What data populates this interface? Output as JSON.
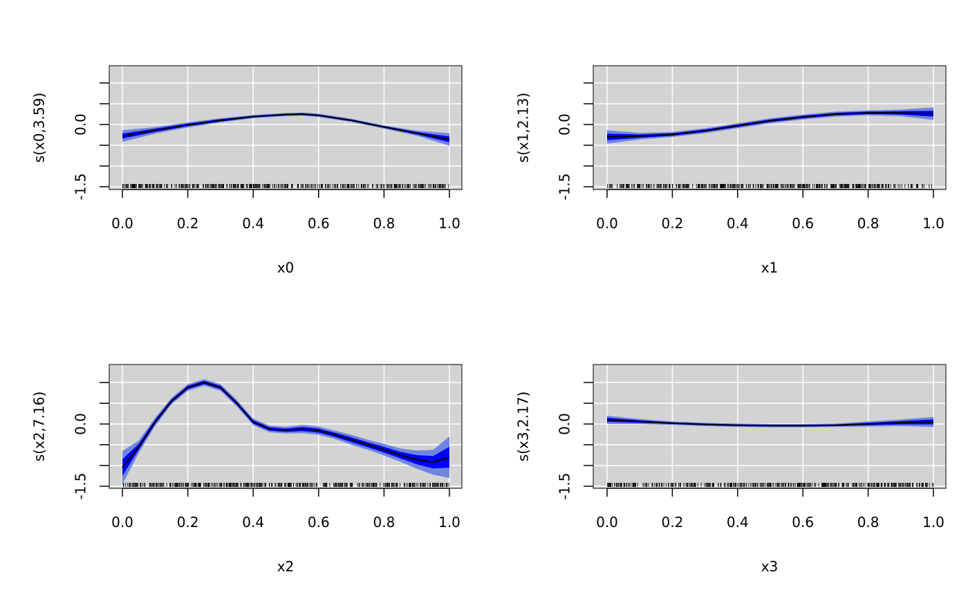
{
  "chart_data": [
    {
      "type": "line",
      "xlabel": "x0",
      "ylabel": "s(x0,3.59)",
      "xlim": [
        0,
        1
      ],
      "ylim": [
        -1.5,
        1.0
      ],
      "xticks": [
        "0.0",
        "0.2",
        "0.4",
        "0.6",
        "0.8",
        "1.0"
      ],
      "yticks": [
        "-1.5",
        "0.0"
      ],
      "grid": true,
      "series": [
        {
          "x": [
            0.0,
            0.1,
            0.2,
            0.3,
            0.4,
            0.5,
            0.55,
            0.6,
            0.7,
            0.8,
            0.9,
            1.0
          ],
          "y": [
            -0.28,
            -0.14,
            -0.01,
            0.1,
            0.19,
            0.24,
            0.25,
            0.22,
            0.1,
            -0.06,
            -0.21,
            -0.36
          ],
          "lower_inner": [
            -0.34,
            -0.18,
            -0.04,
            0.07,
            0.17,
            0.22,
            0.23,
            0.2,
            0.08,
            -0.08,
            -0.24,
            -0.43
          ],
          "upper_inner": [
            -0.22,
            -0.1,
            0.02,
            0.13,
            0.21,
            0.26,
            0.27,
            0.24,
            0.12,
            -0.04,
            -0.18,
            -0.29
          ],
          "lower_outer": [
            -0.42,
            -0.22,
            -0.07,
            0.05,
            0.15,
            0.2,
            0.21,
            0.18,
            0.06,
            -0.1,
            -0.27,
            -0.51
          ],
          "upper_outer": [
            -0.14,
            -0.06,
            0.05,
            0.15,
            0.23,
            0.28,
            0.29,
            0.26,
            0.14,
            -0.02,
            -0.15,
            -0.21
          ]
        }
      ]
    },
    {
      "type": "line",
      "xlabel": "x1",
      "ylabel": "s(x1,2.13)",
      "xlim": [
        0,
        1
      ],
      "ylim": [
        -1.5,
        1.0
      ],
      "xticks": [
        "0.0",
        "0.2",
        "0.4",
        "0.6",
        "0.8",
        "1.0"
      ],
      "yticks": [
        "-1.5",
        "0.0"
      ],
      "grid": true,
      "series": [
        {
          "x": [
            0.0,
            0.1,
            0.2,
            0.3,
            0.4,
            0.5,
            0.6,
            0.7,
            0.8,
            0.9,
            1.0
          ],
          "y": [
            -0.3,
            -0.28,
            -0.24,
            -0.15,
            -0.03,
            0.09,
            0.18,
            0.25,
            0.28,
            0.28,
            0.26
          ],
          "lower_inner": [
            -0.38,
            -0.32,
            -0.27,
            -0.18,
            -0.06,
            0.06,
            0.15,
            0.22,
            0.25,
            0.24,
            0.19
          ],
          "upper_inner": [
            -0.22,
            -0.24,
            -0.21,
            -0.12,
            0.0,
            0.12,
            0.21,
            0.28,
            0.31,
            0.32,
            0.33
          ],
          "lower_outer": [
            -0.46,
            -0.36,
            -0.3,
            -0.21,
            -0.09,
            0.03,
            0.12,
            0.19,
            0.22,
            0.2,
            0.11
          ],
          "upper_outer": [
            -0.14,
            -0.2,
            -0.18,
            -0.09,
            0.03,
            0.15,
            0.24,
            0.31,
            0.34,
            0.36,
            0.41
          ]
        }
      ]
    },
    {
      "type": "line",
      "xlabel": "x2",
      "ylabel": "s(x2,7.16)",
      "xlim": [
        0,
        1
      ],
      "ylim": [
        -1.5,
        1.0
      ],
      "xticks": [
        "0.0",
        "0.2",
        "0.4",
        "0.6",
        "0.8",
        "1.0"
      ],
      "yticks": [
        "-1.5",
        "0.0"
      ],
      "grid": true,
      "series": [
        {
          "x": [
            0.0,
            0.05,
            0.1,
            0.15,
            0.2,
            0.25,
            0.3,
            0.35,
            0.4,
            0.45,
            0.5,
            0.55,
            0.6,
            0.65,
            0.7,
            0.75,
            0.8,
            0.85,
            0.9,
            0.95,
            1.0
          ],
          "y": [
            -1.05,
            -0.55,
            0.05,
            0.55,
            0.88,
            1.0,
            0.88,
            0.5,
            0.05,
            -0.12,
            -0.15,
            -0.12,
            -0.16,
            -0.26,
            -0.38,
            -0.5,
            -0.62,
            -0.75,
            -0.86,
            -0.92,
            -0.8
          ],
          "lower_inner": [
            -1.25,
            -0.62,
            0.0,
            0.51,
            0.84,
            0.96,
            0.84,
            0.46,
            0.01,
            -0.16,
            -0.19,
            -0.17,
            -0.21,
            -0.31,
            -0.44,
            -0.56,
            -0.69,
            -0.83,
            -0.97,
            -1.07,
            -1.05
          ],
          "upper_inner": [
            -0.85,
            -0.48,
            0.1,
            0.59,
            0.92,
            1.04,
            0.92,
            0.54,
            0.09,
            -0.08,
            -0.11,
            -0.07,
            -0.11,
            -0.21,
            -0.32,
            -0.44,
            -0.55,
            -0.67,
            -0.75,
            -0.77,
            -0.55
          ],
          "lower_outer": [
            -1.45,
            -0.7,
            -0.05,
            0.47,
            0.8,
            0.92,
            0.8,
            0.42,
            -0.03,
            -0.2,
            -0.23,
            -0.22,
            -0.26,
            -0.36,
            -0.5,
            -0.62,
            -0.76,
            -0.91,
            -1.08,
            -1.22,
            -1.3
          ],
          "upper_outer": [
            -0.65,
            -0.4,
            0.15,
            0.63,
            0.96,
            1.08,
            0.96,
            0.58,
            0.13,
            -0.04,
            -0.07,
            -0.02,
            -0.06,
            -0.16,
            -0.26,
            -0.38,
            -0.48,
            -0.59,
            -0.64,
            -0.62,
            -0.3
          ]
        }
      ]
    },
    {
      "type": "line",
      "xlabel": "x3",
      "ylabel": "s(x3,2.17)",
      "xlim": [
        0,
        1
      ],
      "ylim": [
        -1.5,
        1.0
      ],
      "xticks": [
        "0.0",
        "0.2",
        "0.4",
        "0.6",
        "0.8",
        "1.0"
      ],
      "yticks": [
        "-1.5",
        "0.0"
      ],
      "grid": true,
      "series": [
        {
          "x": [
            0.0,
            0.1,
            0.2,
            0.3,
            0.4,
            0.5,
            0.6,
            0.7,
            0.8,
            0.9,
            1.0
          ],
          "y": [
            0.1,
            0.06,
            0.02,
            -0.01,
            -0.03,
            -0.04,
            -0.04,
            -0.03,
            0.0,
            0.03,
            0.05
          ],
          "lower_inner": [
            0.05,
            0.03,
            0.0,
            -0.03,
            -0.05,
            -0.06,
            -0.06,
            -0.05,
            -0.03,
            -0.01,
            -0.01
          ],
          "upper_inner": [
            0.15,
            0.09,
            0.04,
            0.01,
            -0.01,
            -0.02,
            -0.02,
            -0.01,
            0.03,
            0.07,
            0.11
          ],
          "lower_outer": [
            0.0,
            0.0,
            -0.02,
            -0.05,
            -0.07,
            -0.08,
            -0.08,
            -0.07,
            -0.06,
            -0.05,
            -0.07
          ],
          "upper_outer": [
            0.2,
            0.12,
            0.06,
            0.03,
            0.01,
            0.0,
            0.0,
            0.01,
            0.06,
            0.11,
            0.17
          ]
        }
      ]
    }
  ],
  "colors": {
    "panel_background": "#d3d3d3",
    "grid": "#ffffff",
    "outer_band": "#6f86e0",
    "inner_band": "#0000ff",
    "line": "#000000"
  }
}
